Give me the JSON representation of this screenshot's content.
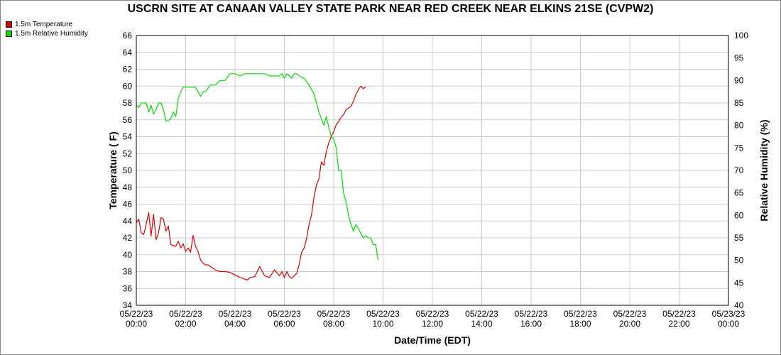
{
  "chart_data": {
    "type": "line",
    "title": "USCRN SITE AT CANAAN VALLEY STATE PARK NEAR RED CREEK NEAR ELKINS 21SE (CVPW2)",
    "xlabel": "Date/Time (EDT)",
    "ylabel_left": "Temperature ( F)",
    "ylabel_right": "Relative Humidity (%)",
    "ylim_left": [
      34,
      66
    ],
    "ylim_right": [
      40,
      100
    ],
    "xlim_hours": [
      0,
      24
    ],
    "grid": true,
    "legend_position": "top-left",
    "x_tick_labels": [
      [
        "05/22/23",
        "00:00"
      ],
      [
        "05/22/23",
        "02:00"
      ],
      [
        "05/22/23",
        "04:00"
      ],
      [
        "05/22/23",
        "06:00"
      ],
      [
        "05/22/23",
        "08:00"
      ],
      [
        "05/22/23",
        "10:00"
      ],
      [
        "05/22/23",
        "12:00"
      ],
      [
        "05/22/23",
        "14:00"
      ],
      [
        "05/22/23",
        "16:00"
      ],
      [
        "05/22/23",
        "18:00"
      ],
      [
        "05/22/23",
        "20:00"
      ],
      [
        "05/22/23",
        "22:00"
      ],
      [
        "05/23/23",
        "00:00"
      ]
    ],
    "y_ticks_left": [
      34,
      36,
      38,
      40,
      42,
      44,
      46,
      48,
      50,
      52,
      54,
      56,
      58,
      60,
      62,
      64,
      66
    ],
    "y_ticks_right": [
      40,
      45,
      50,
      55,
      60,
      65,
      70,
      75,
      80,
      85,
      90,
      95,
      100
    ],
    "series": [
      {
        "name": "1.5m Temperature",
        "color": "#dd0000",
        "axis": "left",
        "x": [
          0.0,
          0.1,
          0.2,
          0.3,
          0.4,
          0.5,
          0.6,
          0.7,
          0.8,
          0.9,
          1.0,
          1.1,
          1.2,
          1.3,
          1.4,
          1.5,
          1.6,
          1.7,
          1.8,
          1.9,
          2.0,
          2.1,
          2.2,
          2.3,
          2.4,
          2.5,
          2.6,
          2.7,
          2.8,
          2.9,
          3.0,
          3.2,
          3.4,
          3.6,
          3.8,
          4.0,
          4.2,
          4.4,
          4.5,
          4.6,
          4.8,
          5.0,
          5.2,
          5.4,
          5.6,
          5.8,
          5.9,
          6.0,
          6.1,
          6.2,
          6.3,
          6.4,
          6.5,
          6.6,
          6.7,
          6.8,
          6.9,
          7.0,
          7.1,
          7.2,
          7.3,
          7.4,
          7.5,
          7.6,
          7.7,
          7.8,
          7.9,
          8.0,
          8.1,
          8.2,
          8.3,
          8.4,
          8.5,
          8.6,
          8.7,
          8.8,
          8.9,
          9.0,
          9.1,
          9.2,
          9.3,
          9.4,
          9.5,
          9.6,
          9.7,
          9.8,
          9.9,
          10.0
        ],
        "y": [
          43.8,
          44.2,
          42.6,
          42.4,
          43.6,
          45.0,
          42.2,
          44.8,
          41.8,
          42.6,
          44.4,
          44.2,
          42.8,
          43.4,
          41.2,
          41.1,
          41.0,
          41.6,
          40.8,
          41.3,
          40.4,
          40.8,
          40.3,
          42.3,
          41.0,
          40.4,
          39.4,
          39.0,
          38.8,
          38.8,
          38.6,
          38.2,
          38.0,
          38.0,
          37.9,
          37.6,
          37.3,
          37.1,
          37.0,
          37.3,
          37.4,
          38.6,
          37.5,
          37.3,
          38.2,
          37.5,
          38.0,
          37.3,
          38.0,
          37.4,
          37.2,
          37.5,
          37.8,
          38.8,
          40.3,
          40.8,
          41.9,
          43.6,
          44.7,
          46.8,
          48.3,
          49.0,
          51.0,
          50.6,
          52.2,
          53.3,
          54.0,
          54.6,
          55.4,
          55.8,
          56.3,
          56.6,
          57.2,
          57.4,
          57.6,
          58.2,
          59.0,
          59.6,
          60.0,
          59.7,
          59.9,
          null,
          null,
          null,
          null,
          null,
          null,
          null
        ]
      },
      {
        "name": "1.5m Relative Humidity",
        "color": "#00dd00",
        "axis": "right",
        "x": [
          0.0,
          0.1,
          0.2,
          0.3,
          0.4,
          0.5,
          0.6,
          0.7,
          0.8,
          0.9,
          1.0,
          1.1,
          1.2,
          1.3,
          1.4,
          1.5,
          1.6,
          1.7,
          1.8,
          1.9,
          2.0,
          2.2,
          2.4,
          2.6,
          2.7,
          2.8,
          3.0,
          3.2,
          3.4,
          3.6,
          3.8,
          4.0,
          4.2,
          4.4,
          4.6,
          4.8,
          5.0,
          5.2,
          5.4,
          5.6,
          5.8,
          5.9,
          6.0,
          6.1,
          6.2,
          6.3,
          6.4,
          6.5,
          6.6,
          6.8,
          7.0,
          7.2,
          7.4,
          7.6,
          7.7,
          7.8,
          7.9,
          8.0,
          8.1,
          8.2,
          8.3,
          8.4,
          8.5,
          8.6,
          8.7,
          8.8,
          8.9,
          9.0,
          9.1,
          9.2,
          9.3,
          9.4,
          9.5,
          9.6,
          9.7,
          9.8,
          9.9,
          10.0
        ],
        "y": [
          84.5,
          84.0,
          85.0,
          85.0,
          85.0,
          83.0,
          84.5,
          82.5,
          83.5,
          85.0,
          85.0,
          83.5,
          81.0,
          81.0,
          81.5,
          83.0,
          82.0,
          86.0,
          87.5,
          88.5,
          88.5,
          88.5,
          88.5,
          86.5,
          87.5,
          87.5,
          89.0,
          89.0,
          90.0,
          90.0,
          91.5,
          91.5,
          91.0,
          91.5,
          91.5,
          91.5,
          91.5,
          91.5,
          91.0,
          91.0,
          91.0,
          91.5,
          90.5,
          91.5,
          91.0,
          90.5,
          91.5,
          91.5,
          91.0,
          90.5,
          89.0,
          87.0,
          83.0,
          80.0,
          82.0,
          79.5,
          77.5,
          77.0,
          75.0,
          70.0,
          70.0,
          65.0,
          63.0,
          60.0,
          58.0,
          56.5,
          58.0,
          57.0,
          56.0,
          55.0,
          55.5,
          55.0,
          55.0,
          53.5,
          53.5,
          50.0,
          null,
          null
        ]
      }
    ]
  }
}
